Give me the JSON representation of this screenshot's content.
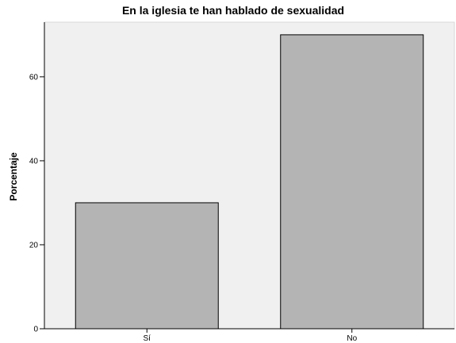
{
  "chart_data": {
    "type": "bar",
    "title": "En la iglesia te han hablado de sexualidad",
    "xlabel": "",
    "ylabel": "Porcentaje",
    "categories": [
      "Sí",
      "No"
    ],
    "values": [
      30,
      70
    ],
    "ylim": [
      0,
      73
    ],
    "yticks": [
      0,
      20,
      40,
      60
    ],
    "grid": false,
    "legend": "none",
    "colors": {
      "plot_background": "#f0f0f0",
      "bar_fill": "#b4b4b4",
      "bar_stroke": "#000000",
      "axis": "#000000"
    }
  }
}
